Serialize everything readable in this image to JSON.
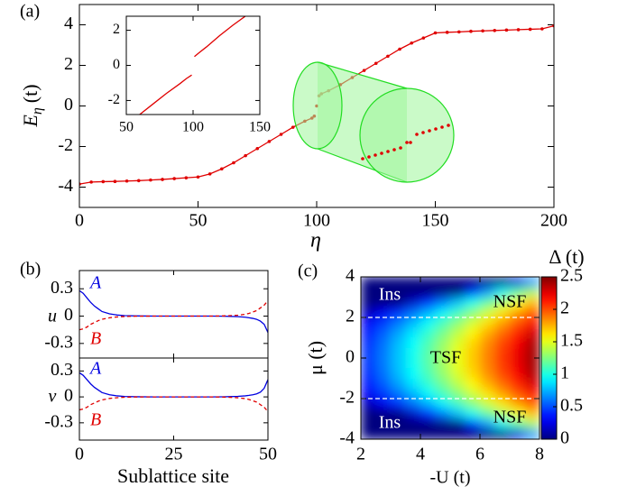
{
  "chart_data": [
    {
      "type": "line",
      "panel_label": "(a)",
      "xlabel": "η",
      "ylabel": "E",
      "ylabel_sub": "η",
      "ylabel_unit": "(t)",
      "xlim": [
        0,
        200
      ],
      "ylim": [
        -5,
        5
      ],
      "xticks": [
        0,
        50,
        100,
        150,
        200
      ],
      "yticks": [
        -4,
        -2,
        0,
        2,
        4
      ],
      "markers": true,
      "series": [
        {
          "color": "#e00000",
          "x": [
            0,
            5,
            10,
            15,
            20,
            25,
            30,
            35,
            40,
            45,
            50,
            55,
            60,
            65,
            70,
            75,
            80,
            85,
            90,
            95,
            98,
            99
          ],
          "values": [
            -3.85,
            -3.75,
            -3.73,
            -3.72,
            -3.7,
            -3.68,
            -3.65,
            -3.62,
            -3.58,
            -3.54,
            -3.5,
            -3.35,
            -3.1,
            -2.8,
            -2.45,
            -2.1,
            -1.75,
            -1.4,
            -1.05,
            -0.75,
            -0.6,
            -0.5
          ]
        },
        {
          "color": "#e00000",
          "x": [
            100
          ],
          "values": [
            0
          ]
        },
        {
          "color": "#e00000",
          "x": [
            101,
            102,
            105,
            110,
            115,
            120,
            125,
            130,
            135,
            140,
            145,
            150,
            155,
            160,
            165,
            170,
            175,
            180,
            185,
            190,
            195,
            200
          ],
          "values": [
            0.5,
            0.6,
            0.75,
            1.05,
            1.4,
            1.75,
            2.1,
            2.45,
            2.8,
            3.1,
            3.35,
            3.6,
            3.63,
            3.65,
            3.68,
            3.7,
            3.72,
            3.74,
            3.76,
            3.78,
            3.8,
            3.95
          ]
        }
      ]
    },
    {
      "type": "line",
      "xlim": [
        50,
        150
      ],
      "ylim": [
        -2.8,
        2.8
      ],
      "xticks": [
        50,
        100,
        150
      ],
      "yticks": [
        -2,
        0,
        2
      ],
      "markers": false,
      "series": [
        {
          "color": "#e00000",
          "x": [
            60,
            70,
            80,
            90,
            95,
            99
          ],
          "values": [
            -2.8,
            -2.2,
            -1.6,
            -1.05,
            -0.75,
            -0.55
          ]
        },
        {
          "color": "#e00000",
          "x": [
            101,
            105,
            110,
            120,
            130,
            140
          ],
          "values": [
            0.5,
            0.75,
            1.05,
            1.7,
            2.3,
            2.85
          ]
        }
      ]
    },
    {
      "type": "line",
      "panel_label": "(b)",
      "ylabel": "u",
      "xlim": [
        0,
        50
      ],
      "ylim": [
        -0.46,
        0.5
      ],
      "xticks": [
        0,
        25,
        50
      ],
      "yticks": [
        -0.3,
        0,
        0.3
      ],
      "x": [
        0,
        1,
        2,
        3,
        4,
        5,
        6,
        8,
        10,
        12,
        15,
        20,
        25,
        30,
        35,
        38,
        40,
        42,
        44,
        45,
        46,
        47,
        48,
        49,
        50
      ],
      "series": [
        {
          "name": "A",
          "color": "#0000e0",
          "linestyle": "solid",
          "values": [
            0.28,
            0.25,
            0.2,
            0.15,
            0.11,
            0.08,
            0.05,
            0.025,
            0.012,
            0.005,
            0.002,
            0,
            0,
            0,
            0,
            -0.001,
            -0.003,
            -0.006,
            -0.012,
            -0.018,
            -0.025,
            -0.035,
            -0.055,
            -0.09,
            -0.18
          ]
        },
        {
          "name": "B",
          "color": "#e00000",
          "linestyle": "dashed",
          "values": [
            -0.15,
            -0.14,
            -0.12,
            -0.09,
            -0.07,
            -0.05,
            -0.035,
            -0.018,
            -0.009,
            -0.004,
            -0.001,
            0,
            0,
            0,
            0,
            0.002,
            0.005,
            0.01,
            0.02,
            0.03,
            0.045,
            0.06,
            0.09,
            0.12,
            0.17
          ]
        }
      ]
    },
    {
      "type": "line",
      "ylabel": "v",
      "xlabel": "Sublattice site",
      "xlim": [
        0,
        50
      ],
      "ylim": [
        -0.5,
        0.45
      ],
      "xticks": [
        0,
        25,
        50
      ],
      "yticks": [
        -0.3,
        0,
        0.3
      ],
      "x": [
        0,
        1,
        2,
        3,
        4,
        5,
        6,
        8,
        10,
        12,
        15,
        20,
        25,
        30,
        35,
        38,
        40,
        42,
        44,
        45,
        46,
        47,
        48,
        49,
        50
      ],
      "series": [
        {
          "name": "A",
          "color": "#0000e0",
          "linestyle": "solid",
          "values": [
            0.28,
            0.25,
            0.2,
            0.15,
            0.11,
            0.08,
            0.05,
            0.025,
            0.012,
            0.005,
            0.002,
            0,
            0,
            0,
            0,
            0.001,
            0.003,
            0.006,
            0.012,
            0.018,
            0.025,
            0.035,
            0.055,
            0.1,
            0.2
          ]
        },
        {
          "name": "B",
          "color": "#e00000",
          "linestyle": "dashed",
          "values": [
            -0.15,
            -0.14,
            -0.12,
            -0.09,
            -0.07,
            -0.05,
            -0.035,
            -0.018,
            -0.009,
            -0.004,
            -0.001,
            0,
            0,
            0,
            0,
            -0.002,
            -0.005,
            -0.01,
            -0.02,
            -0.03,
            -0.045,
            -0.06,
            -0.09,
            -0.12,
            -0.17
          ]
        }
      ]
    },
    {
      "type": "heatmap",
      "panel_label": "(c)",
      "xlabel": "-U (t)",
      "ylabel": "μ (t)",
      "colormap": "jet",
      "xlim": [
        2,
        8
      ],
      "ylim": [
        -4,
        4
      ],
      "xticks": [
        2,
        4,
        6,
        8
      ],
      "yticks": [
        -4,
        -2,
        0,
        2,
        4
      ],
      "x": [
        2.25,
        2.75,
        3.25,
        3.75,
        4.25,
        4.75,
        5.25,
        5.75,
        6.25,
        6.75,
        7.25,
        7.75
      ],
      "y": [
        3.75,
        3.25,
        2.75,
        2.25,
        1.75,
        1.25,
        0.75,
        0.25,
        -0.25,
        -0.75,
        -1.25,
        -1.75,
        -2.25,
        -2.75,
        -3.25,
        -3.75
      ],
      "z": [
        [
          0,
          0,
          0,
          0,
          0,
          0,
          0,
          0,
          0,
          0,
          0.22,
          0.68
        ],
        [
          0,
          0,
          0,
          0,
          0,
          0,
          0,
          0.41,
          0.69,
          0.92,
          1.14,
          1.35
        ],
        [
          0,
          0,
          0,
          0.17,
          0.4,
          0.6,
          0.78,
          0.97,
          1.16,
          1.35,
          1.53,
          1.72
        ],
        [
          0.14,
          0.27,
          0.42,
          0.58,
          0.74,
          0.91,
          1.08,
          1.26,
          1.44,
          1.62,
          1.8,
          1.98
        ],
        [
          0.3,
          0.44,
          0.6,
          0.76,
          0.93,
          1.1,
          1.27,
          1.45,
          1.63,
          1.8,
          1.98,
          2.16
        ],
        [
          0.37,
          0.54,
          0.71,
          0.88,
          1.05,
          1.22,
          1.4,
          1.58,
          1.76,
          1.93,
          2.11,
          2.29
        ],
        [
          0.42,
          0.59,
          0.77,
          0.94,
          1.12,
          1.3,
          1.48,
          1.66,
          1.84,
          2.02,
          2.2,
          2.38
        ],
        [
          0.44,
          0.61,
          0.79,
          0.97,
          1.15,
          1.33,
          1.51,
          1.69,
          1.87,
          2.05,
          2.23,
          2.41
        ],
        [
          0.44,
          0.61,
          0.79,
          0.97,
          1.15,
          1.33,
          1.51,
          1.69,
          1.87,
          2.05,
          2.23,
          2.41
        ],
        [
          0.42,
          0.59,
          0.77,
          0.94,
          1.12,
          1.3,
          1.48,
          1.66,
          1.84,
          2.02,
          2.2,
          2.38
        ],
        [
          0.37,
          0.54,
          0.71,
          0.88,
          1.05,
          1.22,
          1.4,
          1.58,
          1.76,
          1.93,
          2.11,
          2.29
        ],
        [
          0.3,
          0.44,
          0.6,
          0.76,
          0.93,
          1.1,
          1.27,
          1.45,
          1.63,
          1.8,
          1.98,
          2.16
        ],
        [
          0.14,
          0.27,
          0.42,
          0.58,
          0.74,
          0.91,
          1.08,
          1.26,
          1.44,
          1.62,
          1.8,
          1.98
        ],
        [
          0,
          0,
          0,
          0.17,
          0.4,
          0.6,
          0.78,
          0.97,
          1.16,
          1.35,
          1.53,
          1.72
        ],
        [
          0,
          0,
          0,
          0,
          0,
          0,
          0,
          0.41,
          0.69,
          0.92,
          1.14,
          1.35
        ],
        [
          0,
          0,
          0,
          0,
          0,
          0,
          0,
          0,
          0,
          0,
          0.22,
          0.68
        ]
      ],
      "hlines": [
        2,
        -2
      ],
      "annotations": [
        "Ins",
        "NSF",
        "TSF",
        "Ins",
        "NSF"
      ],
      "colorbar": {
        "title": "Δ (t)",
        "lim": [
          0,
          2.5
        ],
        "ticks": [
          0,
          0.5,
          1,
          1.5,
          2,
          2.5
        ]
      }
    }
  ]
}
